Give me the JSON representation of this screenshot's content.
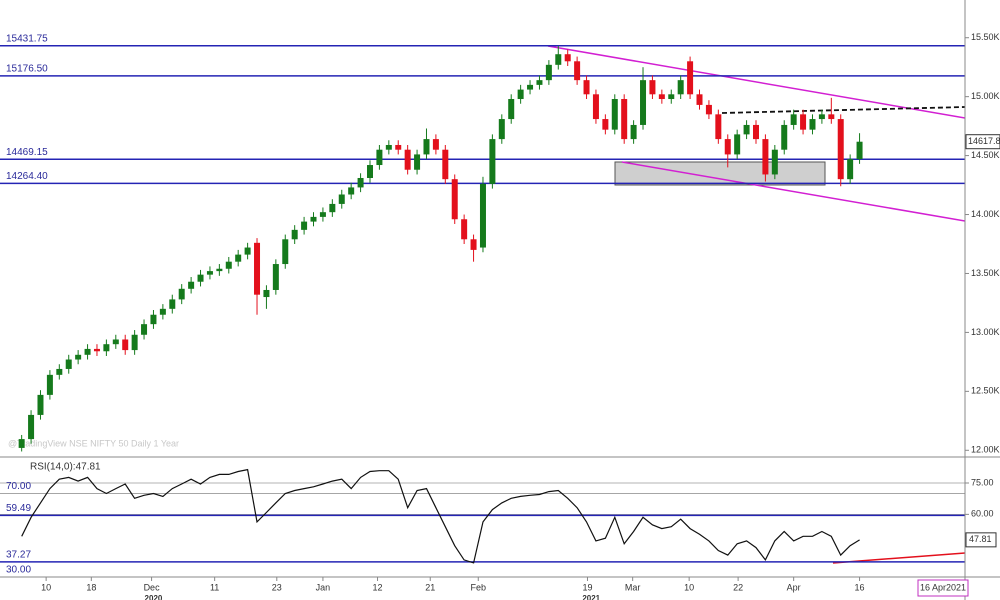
{
  "chart_data": [
    {
      "type": "candlestick",
      "watermark": "@TradingView NSE NIFTY 50 Daily 1 Year",
      "up_color": "#157a1c",
      "down_color": "#e3101c",
      "level_color": "#2424b4",
      "xlim": [
        -2.3,
        100.2
      ],
      "ylim": [
        11960,
        15820
      ],
      "yticks": [
        {
          "value": 15500,
          "label": "15.50K"
        },
        {
          "value": 15000,
          "label": "15.00K"
        },
        {
          "value": 14500,
          "label": "14.50K"
        },
        {
          "value": 14000,
          "label": "14.00K"
        },
        {
          "value": 13500,
          "label": "13.50K"
        },
        {
          "value": 13000,
          "label": "13.00K"
        },
        {
          "value": 12500,
          "label": "12.50K"
        },
        {
          "value": 12000,
          "label": "12.00K"
        }
      ],
      "levels": [
        {
          "value": 15431.75,
          "label": "15431.75"
        },
        {
          "value": 15176.5,
          "label": "15176.50"
        },
        {
          "value": 14469.15,
          "label": "14469.15"
        },
        {
          "value": 14264.4,
          "label": "14264.40"
        }
      ],
      "open": [
        12020,
        12095,
        12300,
        12470,
        12640,
        12690,
        12770,
        12810,
        12860,
        12840,
        12900,
        12940,
        12850,
        12980,
        13070,
        13150,
        13200,
        13280,
        13370,
        13430,
        13490,
        13520,
        13540,
        13600,
        13660,
        13760,
        13300,
        13360,
        13580,
        13790,
        13870,
        13940,
        13980,
        14020,
        14090,
        14170,
        14230,
        14310,
        14420,
        14550,
        14590,
        14550,
        14380,
        14510,
        14640,
        14550,
        14300,
        13960,
        13790,
        13720,
        14260,
        14640,
        14810,
        14980,
        15060,
        15100,
        15140,
        15270,
        15360,
        15300,
        15140,
        15020,
        14810,
        14720,
        14980,
        14640,
        14760,
        15140,
        15020,
        14980,
        15020,
        15300,
        15020,
        14930,
        14850,
        14640,
        14510,
        14680,
        14760,
        14640,
        14340,
        14550,
        14760,
        14850,
        14720,
        14810,
        14850,
        14810,
        14300,
        14470
      ],
      "high": [
        12130,
        12340,
        12510,
        12680,
        12730,
        12810,
        12850,
        12900,
        12900,
        12940,
        12980,
        12980,
        13020,
        13110,
        13190,
        13240,
        13320,
        13410,
        13470,
        13530,
        13560,
        13580,
        13640,
        13700,
        13760,
        13800,
        13400,
        13620,
        13830,
        13910,
        13980,
        14020,
        14060,
        14130,
        14210,
        14270,
        14350,
        14460,
        14590,
        14630,
        14630,
        14590,
        14550,
        14730,
        14680,
        14590,
        14340,
        14000,
        13830,
        14320,
        14680,
        14850,
        15020,
        15100,
        15140,
        15180,
        15310,
        15430,
        15400,
        15340,
        15180,
        15060,
        14850,
        15020,
        15020,
        14800,
        15250,
        15180,
        15060,
        15060,
        15180,
        15340,
        15060,
        14970,
        14890,
        14680,
        14720,
        14800,
        14800,
        14680,
        14590,
        14800,
        14890,
        14890,
        14850,
        14890,
        14990,
        14850,
        14510,
        14690
      ],
      "low": [
        11990,
        12055,
        12260,
        12430,
        12600,
        12650,
        12730,
        12770,
        12800,
        12800,
        12860,
        12810,
        12810,
        12940,
        13030,
        13110,
        13160,
        13240,
        13330,
        13390,
        13450,
        13480,
        13500,
        13560,
        13620,
        13150,
        13200,
        13320,
        13540,
        13750,
        13830,
        13900,
        13940,
        13980,
        14050,
        14130,
        14190,
        14270,
        14380,
        14510,
        14510,
        14340,
        14340,
        14470,
        14510,
        14260,
        13920,
        13750,
        13600,
        13680,
        14220,
        14600,
        14770,
        14940,
        15020,
        15060,
        15100,
        15230,
        15260,
        15100,
        14980,
        14770,
        14680,
        14680,
        14600,
        14600,
        14720,
        14980,
        14940,
        14940,
        14980,
        14980,
        14890,
        14810,
        14600,
        14400,
        14470,
        14640,
        14600,
        14280,
        14300,
        14510,
        14720,
        14680,
        14680,
        14770,
        14770,
        14240,
        14260,
        14430
      ],
      "close": [
        12095,
        12300,
        12470,
        12640,
        12690,
        12770,
        12810,
        12860,
        12840,
        12900,
        12940,
        12850,
        12980,
        13070,
        13150,
        13200,
        13280,
        13370,
        13430,
        13490,
        13520,
        13540,
        13600,
        13660,
        13720,
        13320,
        13360,
        13580,
        13790,
        13870,
        13940,
        13980,
        14020,
        14090,
        14170,
        14230,
        14310,
        14420,
        14550,
        14590,
        14550,
        14380,
        14510,
        14640,
        14550,
        14300,
        13960,
        13790,
        13700,
        14260,
        14640,
        14810,
        14980,
        15060,
        15100,
        15140,
        15270,
        15360,
        15300,
        15140,
        15020,
        14810,
        14720,
        14980,
        14640,
        14760,
        15140,
        15020,
        14980,
        15020,
        15140,
        15020,
        14930,
        14850,
        14640,
        14510,
        14680,
        14760,
        14640,
        14340,
        14550,
        14760,
        14850,
        14720,
        14810,
        14850,
        14810,
        14300,
        14470,
        14617.8
      ]
    },
    {
      "type": "line",
      "title": "RSI(14,0):47.81",
      "color": "#111111",
      "level_color": "#2424b4",
      "grid_color": "#9a9a9a",
      "xlim": [
        -2.3,
        100.2
      ],
      "ylim": [
        31,
        86
      ],
      "yticks": [
        {
          "value": 75,
          "label": "75.00"
        },
        {
          "value": 60,
          "label": "60.00"
        }
      ],
      "levels": [
        {
          "value": 70,
          "label": "70.00"
        },
        {
          "value": 59.49,
          "label": "59.49"
        },
        {
          "value": 37.27,
          "label": "37.27"
        },
        {
          "value": 30,
          "label": "30.00"
        }
      ],
      "values": [
        49.5,
        58.6,
        65.5,
        72.3,
        76.8,
        77.7,
        75.9,
        77.7,
        72.3,
        70,
        72.3,
        74.5,
        67.7,
        69.1,
        70,
        68.6,
        72.3,
        74.5,
        76.8,
        74.5,
        77.7,
        79.1,
        79.1,
        80.5,
        81.4,
        56.4,
        60.9,
        65.5,
        70,
        71.4,
        72.3,
        73.2,
        74.5,
        75.9,
        76.8,
        72.3,
        77.7,
        80.5,
        80.9,
        80.9,
        76.8,
        63.2,
        71.4,
        72.3,
        63.2,
        54.1,
        45,
        38.2,
        36.8,
        56.4,
        62.3,
        65.5,
        67.7,
        68.6,
        69.1,
        69.5,
        70.9,
        71.4,
        67.7,
        63.2,
        56.4,
        47.3,
        48.6,
        58.6,
        45.9,
        51.8,
        58.6,
        55,
        53.2,
        54.1,
        57.7,
        53.2,
        50.5,
        47.3,
        42.7,
        40.5,
        45.9,
        47.3,
        44.1,
        38.2,
        47.3,
        51.8,
        47.3,
        49.5,
        49.5,
        51.8,
        49.5,
        40.5,
        45,
        47.81
      ],
      "xticks": [
        {
          "value": 2.6,
          "label": "10"
        },
        {
          "value": 7.4,
          "label": "18"
        },
        {
          "value": 13.8,
          "label": "Dec"
        },
        {
          "value": 20.5,
          "label": "11"
        },
        {
          "value": 27.1,
          "label": "23"
        },
        {
          "value": 32,
          "label": "Jan"
        },
        {
          "value": 37.8,
          "label": "12"
        },
        {
          "value": 43.4,
          "label": "21"
        },
        {
          "value": 48.5,
          "label": "Feb"
        },
        {
          "value": 60.1,
          "label": "19"
        },
        {
          "value": 64.9,
          "label": "Mar"
        },
        {
          "value": 70.9,
          "label": "10"
        },
        {
          "value": 76.1,
          "label": "22"
        },
        {
          "value": 82,
          "label": "Apr"
        },
        {
          "value": 89,
          "label": "16"
        }
      ],
      "years": [
        {
          "value": 14,
          "label": "2020"
        },
        {
          "value": 60.5,
          "label": "2021"
        }
      ],
      "date_label": "16 Apr2021"
    }
  ]
}
